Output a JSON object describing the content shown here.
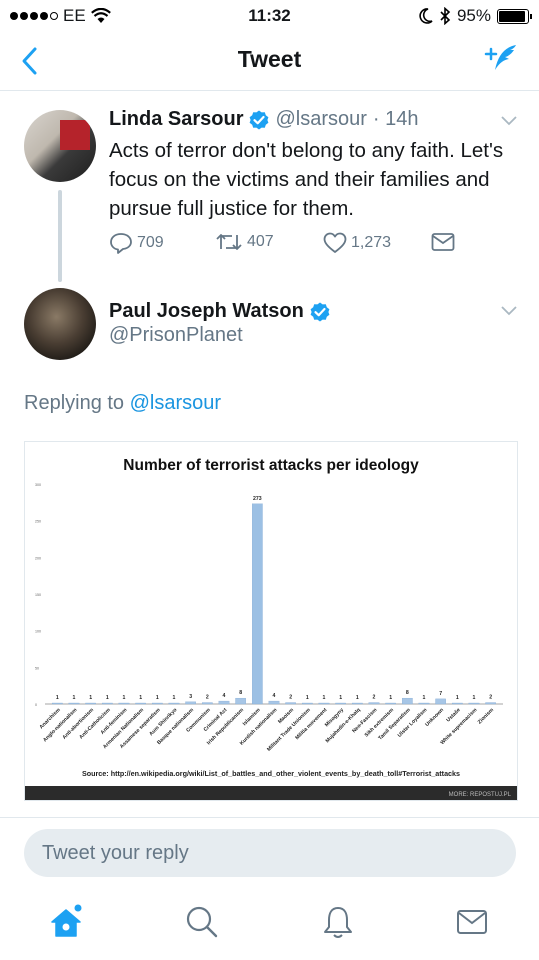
{
  "status_bar": {
    "carrier": "EE",
    "time": "11:32",
    "battery": "95%"
  },
  "nav": {
    "title": "Tweet"
  },
  "tweet1": {
    "name": "Linda Sarsour",
    "handle": "@lsarsour",
    "age": "· 14h",
    "text": "Acts of terror don't belong to any faith. Let's focus on the victims and their families and pursue full justice for them.",
    "replies": "709",
    "retweets": "407",
    "likes": "1,273"
  },
  "tweet2": {
    "name": "Paul Joseph Watson",
    "handle": "@PrisonPlanet",
    "replying_prefix": "Replying to",
    "replying_to": "@lsarsour"
  },
  "chart_data": {
    "type": "bar",
    "title": "Number of terrorist attacks per ideology",
    "categories": [
      "Anarchism",
      "Anglo-nationalism",
      "Anti-abortionism",
      "Anti-Catholicism",
      "Anti-feminism",
      "Armenian Nationalism",
      "Assamese separatism",
      "Aum Shinrikyo",
      "Basque nationalism",
      "Communism",
      "Criminal Act",
      "Irish Republicanism",
      "Islamism",
      "Kurdish nationalism",
      "Maoism",
      "Militant Trade Unionism",
      "Militia movement",
      "Misogyny",
      "Mujahedin-e-Khalq",
      "Neo-Fascism",
      "Sikh extremism",
      "Tamil Separatism",
      "Ulster Loyalism",
      "Unknown",
      "Ustaše",
      "White supremacism",
      "Zionism"
    ],
    "values": [
      1,
      1,
      1,
      1,
      1,
      1,
      1,
      1,
      3,
      2,
      4,
      8,
      273,
      4,
      2,
      1,
      1,
      1,
      1,
      2,
      1,
      8,
      1,
      7,
      1,
      1,
      2
    ],
    "ylim": [
      0,
      300
    ],
    "yticks": [
      "0",
      "50",
      "100",
      "150",
      "200",
      "250",
      "300"
    ],
    "source": "Source: http://en.wikipedia.org/wiki/List_of_battles_and_other_violent_events_by_death_toll#Terrorist_attacks",
    "footer": "MORE: REPOSTUJ.PL"
  },
  "reply_box": {
    "placeholder": "Tweet your reply"
  },
  "colors": {
    "accent": "#1da1f2",
    "bar": "#8fb4da"
  }
}
